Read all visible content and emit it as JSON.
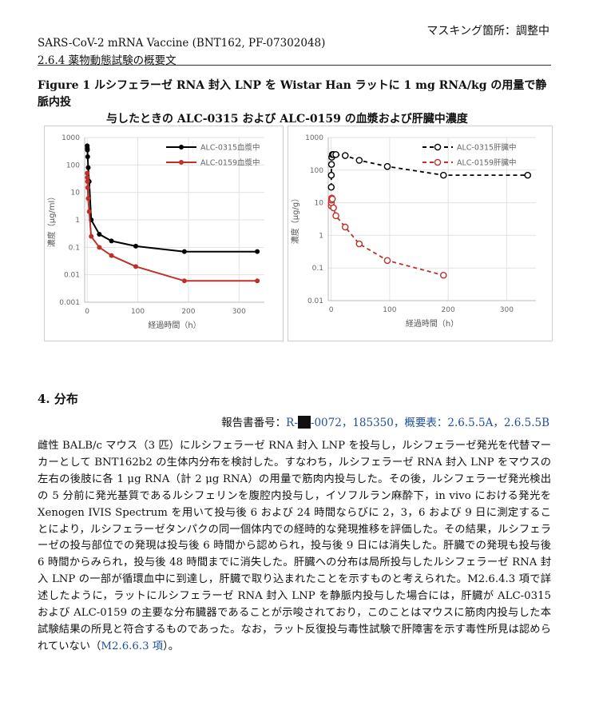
{
  "header": {
    "masking": "マスキング箇所：調整中",
    "line1": "SARS-CoV-2 mRNA Vaccine (BNT162, PF-07302048)",
    "line2": "2.6.4 薬物動態試験の概要文"
  },
  "figure": {
    "title_line1": "Figure 1 ルシフェラーゼ RNA 封入 LNP を Wistar Han ラットに 1 mg RNA/kg の用量で静脈内投",
    "title_line2": "与したときの ALC-0315 および ALC-0159 の血漿および肝臓中濃度"
  },
  "chart_data": [
    {
      "type": "line",
      "title": "",
      "xlabel": "経過時間（h）",
      "ylabel": "濃度（μg/ml）",
      "yscale": "log",
      "ylim": [
        0.001,
        1000
      ],
      "xlim": [
        -5,
        350
      ],
      "xticks": [
        "0",
        "100",
        "200",
        "300"
      ],
      "yticks": [
        "0.001",
        "0.01",
        "0.1",
        "1",
        "10",
        "100",
        "1000"
      ],
      "grid": true,
      "legend_position": "top-right",
      "series": [
        {
          "name": "ALC-0315血漿中",
          "color": "#000000",
          "style": "solid",
          "x": [
            0.083,
            0.25,
            0.5,
            1,
            2,
            4,
            8,
            24,
            48,
            96,
            192,
            336
          ],
          "y": [
            500,
            400,
            350,
            200,
            80,
            25,
            1,
            0.3,
            0.17,
            0.11,
            0.07,
            0.07
          ]
        },
        {
          "name": "ALC-0159血漿中",
          "color": "#c0302a",
          "style": "solid",
          "x": [
            0.083,
            0.25,
            0.5,
            1,
            2,
            4,
            8,
            24,
            48,
            96,
            192,
            336
          ],
          "y": [
            50,
            35,
            25,
            15,
            6,
            2,
            0.25,
            0.1,
            0.05,
            0.02,
            0.006,
            0.006
          ]
        }
      ]
    },
    {
      "type": "line",
      "title": "",
      "xlabel": "経過時間（h）",
      "ylabel": "濃度（μg/g）",
      "yscale": "log",
      "ylim": [
        0.01,
        1000
      ],
      "xlim": [
        -5,
        350
      ],
      "xticks": [
        "0",
        "100",
        "200",
        "300"
      ],
      "yticks": [
        "0.01",
        "0.1",
        "1",
        "10",
        "100",
        "1000"
      ],
      "grid": true,
      "legend_position": "top-right",
      "series": [
        {
          "name": "ALC-0315肝臓中",
          "color": "#000000",
          "style": "dashed",
          "marker": "open-circle",
          "x": [
            0.083,
            0.25,
            0.5,
            1,
            2,
            4,
            8,
            24,
            48,
            96,
            192,
            336
          ],
          "y": [
            30,
            70,
            150,
            250,
            300,
            300,
            300,
            280,
            200,
            130,
            70,
            70
          ]
        },
        {
          "name": "ALC-0159肝臓中",
          "color": "#c0302a",
          "style": "dashed",
          "marker": "open-circle",
          "x": [
            0.083,
            0.25,
            0.5,
            1,
            2,
            4,
            8,
            24,
            48,
            96,
            192
          ],
          "y": [
            8,
            10,
            12,
            14,
            13,
            7,
            4,
            1.8,
            0.55,
            0.17,
            0.06
          ]
        }
      ]
    }
  ],
  "section": {
    "heading": "4. 分布",
    "ref_prefix": "報告書番号：",
    "ref_r": "R-",
    "ref_rest": "-0072，185350，概要表：2.6.5.5A，2.6.5.5B"
  },
  "body": {
    "paragraph": "雌性 BALB/c マウス（3 匹）にルシフェラーゼ RNA 封入 LNP を投与し，ルシフェラーゼ発光を代替マーカーとして BNT162b2 の生体内分布を検討した。すなわち，ルシフェラーゼ RNA 封入 LNP をマウスの左右の後肢に各 1 μg RNA（計 2 μg RNA）の用量で筋肉内投与した。その後，ルシフェラーゼ発光検出の 5 分前に発光基質であるルシフェリンを腹腔内投与し，イソフルラン麻酔下，in vivo における発光を Xenogen IVIS Spectrum を用いて投与後 6 および 24 時間ならびに 2，3，6 および 9 日に測定することにより，ルシフェラーゼタンパクの同一個体内での経時的な発現推移を評価した。その結果，ルシフェラーゼの投与部位での発現は投与後 6 時間から認められ，投与後 9 日には消失した。肝臓での発現も投与後 6 時間からみられ，投与後 48 時間までに消失した。肝臓への分布は局所投与したルシフェラーゼ RNA 封入 LNP の一部が循環血中に到達し，肝臓で取り込まれたことを示すものと考えられた。M2.6.4.3 項で詳述したように，ラットにルシフェラーゼ RNA 封入 LNP を静脈内投与した場合には，肝臓が ALC-0315 および ALC-0159 の主要な分布臓器であることが示唆されており，このことはマウスに筋肉内投与した本試験結果の所見と符合するものであった。なお，ラット反復投与毒性試験で肝障害を示す毒性所見は認められていない（",
    "link": "M2.6.6.3 項",
    "tail": "）。"
  }
}
